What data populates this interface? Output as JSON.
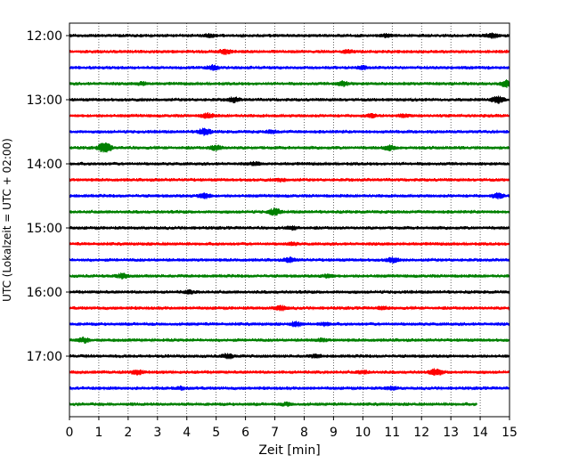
{
  "chart_data": {
    "type": "line",
    "xlabel": "Zeit  [min]",
    "ylabel": "UTC (Lokalzeit = UTC + 02:00)",
    "xlim": [
      0,
      15
    ],
    "xticks": [
      "0",
      "1",
      "2",
      "3",
      "4",
      "5",
      "6",
      "7",
      "8",
      "9",
      "10",
      "11",
      "12",
      "13",
      "14",
      "15"
    ],
    "yticks": [
      "12:00",
      "13:00",
      "14:00",
      "15:00",
      "16:00",
      "17:00"
    ],
    "grid": "vertical dotted",
    "trace_interval_minutes": 15,
    "start_time": "12:00",
    "trace_colors": [
      "#000000",
      "#ff0000",
      "#0000ff",
      "#008000"
    ],
    "last_trace_end_min": 13.9,
    "series": [
      {
        "start": "12:00",
        "color": "#000000",
        "events": [
          [
            4.8,
            2
          ],
          [
            10.8,
            2
          ],
          [
            14.4,
            3
          ]
        ]
      },
      {
        "start": "12:15",
        "color": "#ff0000",
        "events": [
          [
            5.3,
            3
          ],
          [
            9.5,
            2
          ]
        ]
      },
      {
        "start": "12:30",
        "color": "#0000ff",
        "events": [
          [
            4.9,
            3
          ],
          [
            10,
            2
          ]
        ]
      },
      {
        "start": "12:45",
        "color": "#008000",
        "events": [
          [
            2.5,
            2
          ],
          [
            9.3,
            3
          ],
          [
            14.9,
            4
          ]
        ]
      },
      {
        "start": "13:00",
        "color": "#000000",
        "events": [
          [
            5.6,
            3
          ],
          [
            14.6,
            4
          ]
        ]
      },
      {
        "start": "13:15",
        "color": "#ff0000",
        "events": [
          [
            4.7,
            3
          ],
          [
            10.3,
            2
          ],
          [
            11.4,
            2
          ]
        ]
      },
      {
        "start": "13:30",
        "color": "#0000ff",
        "events": [
          [
            4.6,
            4
          ],
          [
            6.9,
            2
          ]
        ]
      },
      {
        "start": "13:45",
        "color": "#008000",
        "events": [
          [
            1.2,
            6
          ],
          [
            5,
            3
          ],
          [
            10.9,
            3
          ]
        ]
      },
      {
        "start": "14:00",
        "color": "#000000",
        "events": [
          [
            6.3,
            2
          ]
        ]
      },
      {
        "start": "14:15",
        "color": "#ff0000",
        "events": [
          [
            7.2,
            2
          ]
        ]
      },
      {
        "start": "14:30",
        "color": "#0000ff",
        "events": [
          [
            4.6,
            3
          ],
          [
            14.6,
            3
          ]
        ]
      },
      {
        "start": "14:45",
        "color": "#008000",
        "events": [
          [
            7,
            4
          ]
        ]
      },
      {
        "start": "15:00",
        "color": "#000000",
        "events": [
          [
            7.6,
            2
          ]
        ]
      },
      {
        "start": "15:15",
        "color": "#ff0000",
        "events": [
          [
            7.6,
            2
          ]
        ]
      },
      {
        "start": "15:30",
        "color": "#0000ff",
        "events": [
          [
            7.5,
            3
          ],
          [
            11,
            3
          ]
        ]
      },
      {
        "start": "15:45",
        "color": "#008000",
        "events": [
          [
            1.8,
            3
          ],
          [
            8.8,
            2
          ]
        ]
      },
      {
        "start": "16:00",
        "color": "#000000",
        "events": [
          [
            4.1,
            2
          ]
        ]
      },
      {
        "start": "16:15",
        "color": "#ff0000",
        "events": [
          [
            7.2,
            3
          ],
          [
            10.7,
            2
          ]
        ]
      },
      {
        "start": "16:30",
        "color": "#0000ff",
        "events": [
          [
            7.7,
            3
          ],
          [
            8.7,
            2
          ]
        ]
      },
      {
        "start": "16:45",
        "color": "#008000",
        "events": [
          [
            0.5,
            3
          ],
          [
            8.6,
            2
          ]
        ]
      },
      {
        "start": "17:00",
        "color": "#000000",
        "events": [
          [
            5.4,
            3
          ],
          [
            8.4,
            2
          ]
        ]
      },
      {
        "start": "17:15",
        "color": "#ff0000",
        "events": [
          [
            2.3,
            3
          ],
          [
            10,
            2
          ],
          [
            12.5,
            4
          ]
        ]
      },
      {
        "start": "17:30",
        "color": "#0000ff",
        "events": [
          [
            3.8,
            2
          ],
          [
            11,
            2
          ]
        ]
      },
      {
        "start": "17:45",
        "color": "#008000",
        "events": [
          [
            7.4,
            2
          ]
        ]
      }
    ]
  }
}
